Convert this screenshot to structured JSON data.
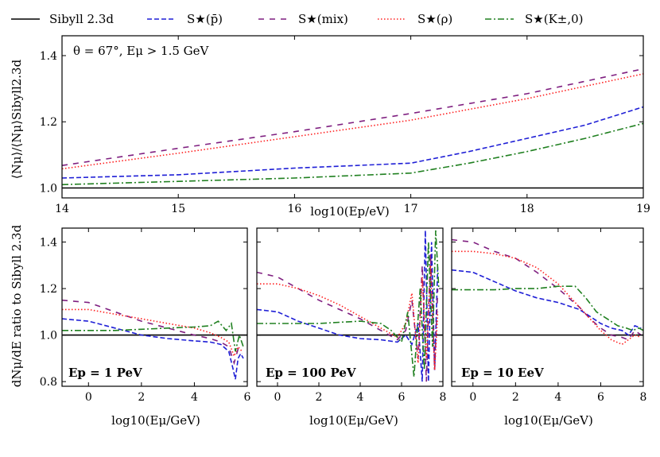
{
  "chart_data": {
    "legend": [
      {
        "key": "sibyll",
        "label": "Sibyll 2.3d",
        "color": "#000000",
        "dash": "solid"
      },
      {
        "key": "pbar",
        "label": "S★(p̄)",
        "color": "#1f1fd6",
        "dash": "dashed"
      },
      {
        "key": "mix",
        "label": "S★(mix)",
        "color": "#7f1f80",
        "dash": "dashed-long"
      },
      {
        "key": "rho",
        "label": "S★(ρ)",
        "color": "#ff2020",
        "dash": "dotted"
      },
      {
        "key": "kaon",
        "label": "S★(K±,0)",
        "color": "#208020",
        "dash": "dashdot"
      }
    ],
    "panels": [
      {
        "id": "top",
        "type": "line",
        "annotation": "θ = 67°, Eμ > 1.5 GeV",
        "xlabel": "log10(Ep/eV)",
        "ylabel": "⟨Nμ⟩/⟨Nμ⟩Sibyll2.3d",
        "xlim": [
          14,
          19
        ],
        "ylim": [
          0.97,
          1.46
        ],
        "xticks": [
          "14",
          "15",
          "16",
          "17",
          "18",
          "19"
        ],
        "yticks": [
          "1.0",
          "1.2",
          "1.4"
        ],
        "series": [
          {
            "key": "sibyll",
            "x": [
              14,
              19
            ],
            "y": [
              1.0,
              1.0
            ]
          },
          {
            "key": "pbar",
            "x": [
              14,
              15,
              16,
              17,
              17.5,
              18,
              18.5,
              19
            ],
            "y": [
              1.03,
              1.04,
              1.06,
              1.075,
              1.11,
              1.15,
              1.19,
              1.245
            ]
          },
          {
            "key": "mix",
            "x": [
              14,
              15,
              16,
              17,
              18,
              19
            ],
            "y": [
              1.068,
              1.12,
              1.17,
              1.225,
              1.285,
              1.36
            ]
          },
          {
            "key": "rho",
            "x": [
              14,
              15,
              16,
              17,
              18,
              19
            ],
            "y": [
              1.058,
              1.105,
              1.155,
              1.205,
              1.27,
              1.345
            ]
          },
          {
            "key": "kaon",
            "x": [
              14,
              15,
              16,
              17,
              17.5,
              18,
              18.5,
              19
            ],
            "y": [
              1.01,
              1.02,
              1.03,
              1.045,
              1.075,
              1.11,
              1.15,
              1.195
            ]
          }
        ]
      },
      {
        "id": "pev",
        "type": "line",
        "annotation": "Ep = 1 PeV",
        "xlabel": "log10(Eμ/GeV)",
        "ylabel": "dNμ/dE ratio to Sibyll 2.3d",
        "xlim": [
          -1,
          6
        ],
        "ylim": [
          0.78,
          1.46
        ],
        "xticks": [
          "0",
          "2",
          "4",
          "6"
        ],
        "yticks": [
          "0.8",
          "1.0",
          "1.2",
          "1.4"
        ],
        "series": [
          {
            "key": "sibyll",
            "x": [
              -1,
              6
            ],
            "y": [
              1.0,
              1.0
            ]
          },
          {
            "key": "pbar",
            "x": [
              -1,
              0,
              1,
              2,
              3,
              4,
              4.6,
              5,
              5.3,
              5.45,
              5.55,
              5.65,
              5.75,
              5.85
            ],
            "y": [
              1.07,
              1.06,
              1.03,
              1.0,
              0.985,
              0.975,
              0.97,
              0.96,
              0.93,
              0.86,
              0.81,
              0.9,
              0.92,
              0.9
            ]
          },
          {
            "key": "mix",
            "x": [
              -1,
              0,
              1,
              2,
              3,
              4,
              4.6,
              5,
              5.3,
              5.5,
              5.65,
              5.8
            ],
            "y": [
              1.15,
              1.14,
              1.1,
              1.06,
              1.03,
              1.0,
              0.985,
              0.97,
              0.95,
              0.88,
              0.94,
              0.92
            ]
          },
          {
            "key": "rho",
            "x": [
              -1,
              0,
              1,
              2,
              3,
              4,
              4.6,
              5,
              5.3,
              5.5,
              5.65,
              5.8
            ],
            "y": [
              1.11,
              1.11,
              1.09,
              1.07,
              1.05,
              1.03,
              1.01,
              0.99,
              0.97,
              0.91,
              0.95,
              0.93
            ]
          },
          {
            "key": "kaon",
            "x": [
              -1,
              0,
              1,
              2,
              3,
              4,
              4.6,
              4.9,
              5.2,
              5.4,
              5.55,
              5.7,
              5.85
            ],
            "y": [
              1.02,
              1.02,
              1.02,
              1.025,
              1.03,
              1.035,
              1.04,
              1.06,
              1.02,
              1.05,
              0.93,
              1.0,
              0.95
            ]
          }
        ]
      },
      {
        "id": "100pev",
        "type": "line",
        "annotation": "Ep = 100 PeV",
        "xlabel": "log10(Eμ/GeV)",
        "xlim": [
          -1,
          8
        ],
        "ylim": [
          0.78,
          1.46
        ],
        "xticks": [
          "0",
          "2",
          "4",
          "6",
          "8"
        ],
        "series": [
          {
            "key": "sibyll",
            "x": [
              -1,
              8
            ],
            "y": [
              1.0,
              1.0
            ]
          },
          {
            "key": "pbar",
            "x": [
              -1,
              0,
              1,
              2,
              3,
              4,
              5,
              5.8,
              6.2,
              6.5,
              6.8,
              7.0,
              7.15,
              7.3,
              7.45,
              7.6,
              7.75
            ],
            "y": [
              1.11,
              1.1,
              1.06,
              1.03,
              1.0,
              0.985,
              0.98,
              0.97,
              1.0,
              0.96,
              1.05,
              0.8,
              1.45,
              0.8,
              1.4,
              0.85,
              1.3
            ]
          },
          {
            "key": "mix",
            "x": [
              -1,
              0,
              1,
              2,
              3,
              4,
              5,
              5.8,
              6.2,
              6.5,
              6.8,
              7.0,
              7.2,
              7.4,
              7.6,
              7.75
            ],
            "y": [
              1.27,
              1.25,
              1.2,
              1.15,
              1.11,
              1.07,
              1.02,
              0.98,
              1.02,
              1.15,
              0.9,
              1.3,
              0.8,
              1.35,
              0.85,
              1.2
            ]
          },
          {
            "key": "rho",
            "x": [
              -1,
              0,
              1,
              2,
              3,
              4,
              5,
              5.8,
              6.2,
              6.5,
              6.8,
              7.0,
              7.2,
              7.4,
              7.6,
              7.75
            ],
            "y": [
              1.22,
              1.22,
              1.2,
              1.17,
              1.13,
              1.08,
              1.03,
              0.99,
              1.05,
              1.18,
              0.88,
              1.25,
              0.9,
              1.3,
              0.85,
              1.1
            ]
          },
          {
            "key": "kaon",
            "x": [
              -1,
              0,
              1,
              2,
              3,
              4,
              5,
              5.5,
              6.0,
              6.3,
              6.6,
              6.9,
              7.1,
              7.3,
              7.5,
              7.65,
              7.8
            ],
            "y": [
              1.05,
              1.05,
              1.05,
              1.05,
              1.055,
              1.06,
              1.05,
              1.02,
              0.97,
              1.1,
              0.82,
              1.2,
              0.85,
              1.4,
              0.95,
              1.45,
              1.2
            ]
          }
        ]
      },
      {
        "id": "10eev",
        "type": "line",
        "annotation": "Ep = 10 EeV",
        "xlabel": "log10(Eμ/GeV)",
        "xlim": [
          -1,
          8
        ],
        "ylim": [
          0.78,
          1.46
        ],
        "xticks": [
          "0",
          "2",
          "4",
          "6",
          "8"
        ],
        "series": [
          {
            "key": "sibyll",
            "x": [
              -1,
              8
            ],
            "y": [
              1.0,
              1.0
            ]
          },
          {
            "key": "pbar",
            "x": [
              -1,
              0,
              1,
              2,
              3,
              4,
              5,
              5.5,
              6,
              6.5,
              7,
              7.3,
              7.6,
              7.9
            ],
            "y": [
              1.28,
              1.27,
              1.23,
              1.19,
              1.16,
              1.14,
              1.11,
              1.08,
              1.05,
              1.03,
              1.02,
              1.0,
              1.04,
              1.03
            ]
          },
          {
            "key": "mix",
            "x": [
              -1,
              0,
              1,
              2,
              2.5,
              3,
              4,
              5,
              5.5,
              6,
              6.5,
              7,
              7.3,
              7.6,
              7.9
            ],
            "y": [
              1.41,
              1.4,
              1.36,
              1.33,
              1.3,
              1.27,
              1.2,
              1.12,
              1.07,
              1.03,
              1.0,
              0.99,
              0.98,
              1.02,
              1.0
            ]
          },
          {
            "key": "rho",
            "x": [
              -1,
              0,
              1,
              2,
              3,
              4,
              5,
              5.5,
              6,
              6.5,
              7,
              7.3,
              7.6,
              7.9
            ],
            "y": [
              1.36,
              1.36,
              1.35,
              1.33,
              1.29,
              1.22,
              1.12,
              1.07,
              1.02,
              0.98,
              0.96,
              0.98,
              1.0,
              0.99
            ]
          },
          {
            "key": "kaon",
            "x": [
              -1,
              0,
              1,
              2,
              3,
              4,
              4.8,
              5.3,
              5.8,
              6.3,
              6.8,
              7.2,
              7.5,
              7.8,
              8.0
            ],
            "y": [
              1.195,
              1.195,
              1.195,
              1.2,
              1.2,
              1.21,
              1.21,
              1.16,
              1.1,
              1.07,
              1.04,
              1.03,
              1.02,
              1.03,
              1.02
            ]
          }
        ]
      }
    ]
  }
}
